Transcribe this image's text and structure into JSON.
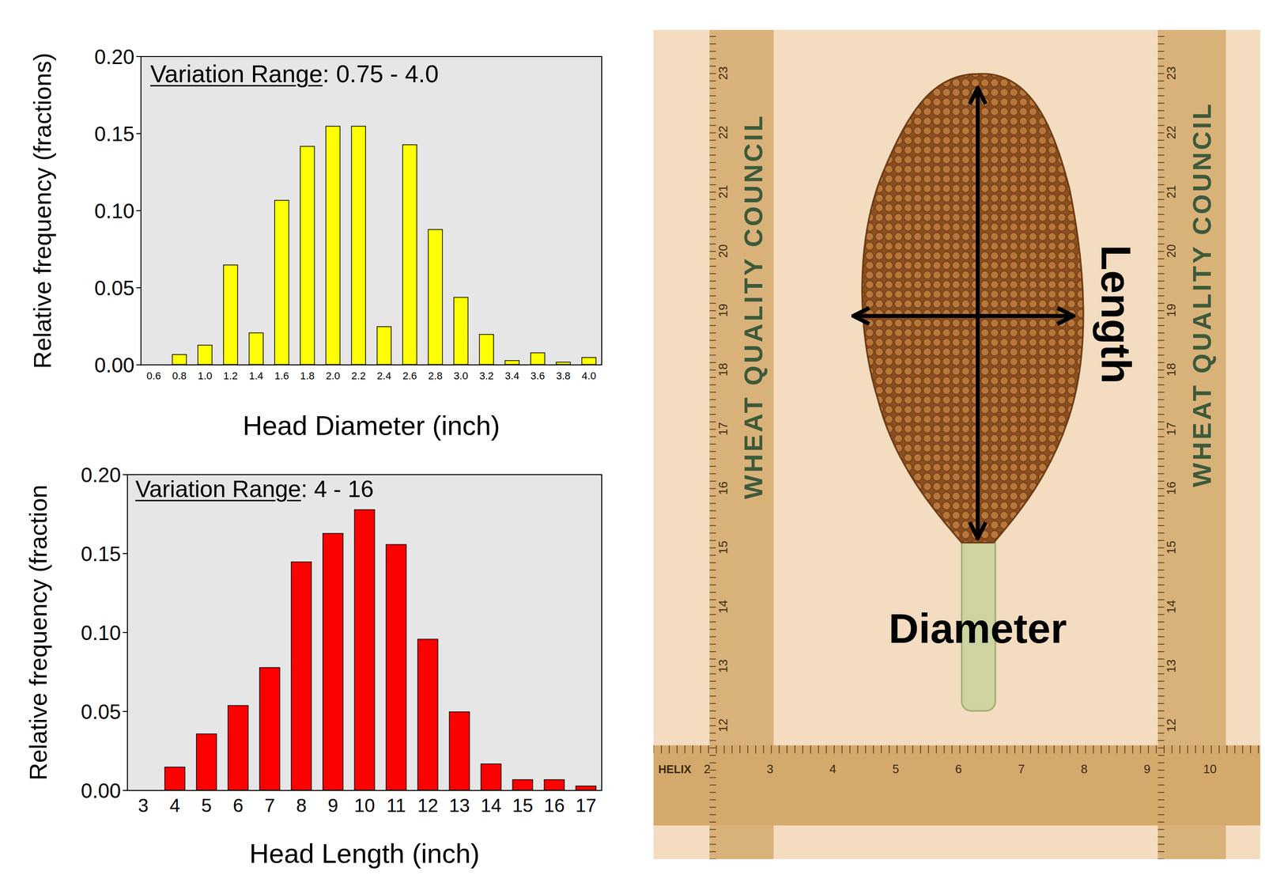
{
  "chart_data": [
    {
      "type": "bar",
      "annotation": "Variation Range: 0.75 - 4.0",
      "x_label": "Head Diameter (inch)",
      "y_label": "Relative frequency (fractions)",
      "categories": [
        "0.6",
        "0.8",
        "1.0",
        "1.2",
        "1.4",
        "1.6",
        "1.8",
        "2.0",
        "2.2",
        "2.4",
        "2.6",
        "2.8",
        "3.0",
        "3.2",
        "3.4",
        "3.6",
        "3.8",
        "4.0"
      ],
      "values": [
        0,
        0.007,
        0.013,
        0.065,
        0.021,
        0.107,
        0.142,
        0.155,
        0.155,
        0.025,
        0.143,
        0.088,
        0.044,
        0.02,
        0.003,
        0.008,
        0.002,
        0.005
      ],
      "color": "#ffff00",
      "ylim": [
        0,
        0.2
      ],
      "yticks": [
        {
          "value": 0,
          "label": "0.00"
        },
        {
          "value": 0.05,
          "label": "0.05"
        },
        {
          "value": 0.1,
          "label": "0.10"
        },
        {
          "value": 0.15,
          "label": "0.15"
        },
        {
          "value": 0.2,
          "label": "0.20"
        }
      ],
      "grid": false
    },
    {
      "type": "bar",
      "annotation": "Variation Range: 4 - 16",
      "x_label": "Head Length (inch)",
      "y_label": "Relative frequency (fraction",
      "categories": [
        "3",
        "4",
        "5",
        "6",
        "7",
        "8",
        "9",
        "10",
        "11",
        "12",
        "13",
        "14",
        "15",
        "16",
        "17"
      ],
      "values": [
        0,
        0.015,
        0.036,
        0.054,
        0.078,
        0.145,
        0.163,
        0.178,
        0.156,
        0.096,
        0.05,
        0.017,
        0.007,
        0.007,
        0.003
      ],
      "color": "#ff0000",
      "ylim": [
        0,
        0.2
      ],
      "yticks": [
        {
          "value": 0,
          "label": "0.00"
        },
        {
          "value": 0.05,
          "label": "0.05"
        },
        {
          "value": 0.1,
          "label": "0.10"
        },
        {
          "value": 0.15,
          "label": "0.15"
        },
        {
          "value": 0.2,
          "label": "0.20"
        }
      ],
      "grid": false
    }
  ],
  "image": {
    "labels": {
      "length": "Length",
      "diameter": "Diameter"
    },
    "ruler": {
      "text": "WHEAT QUALITY COUNCIL",
      "brand": "HELIX",
      "vertical_numbers": [
        12,
        13,
        14,
        15,
        16,
        17,
        18,
        19,
        20,
        21,
        22,
        23
      ],
      "horizontal_numbers": [
        2,
        3,
        4,
        5,
        6,
        7,
        8,
        9,
        10
      ]
    }
  }
}
